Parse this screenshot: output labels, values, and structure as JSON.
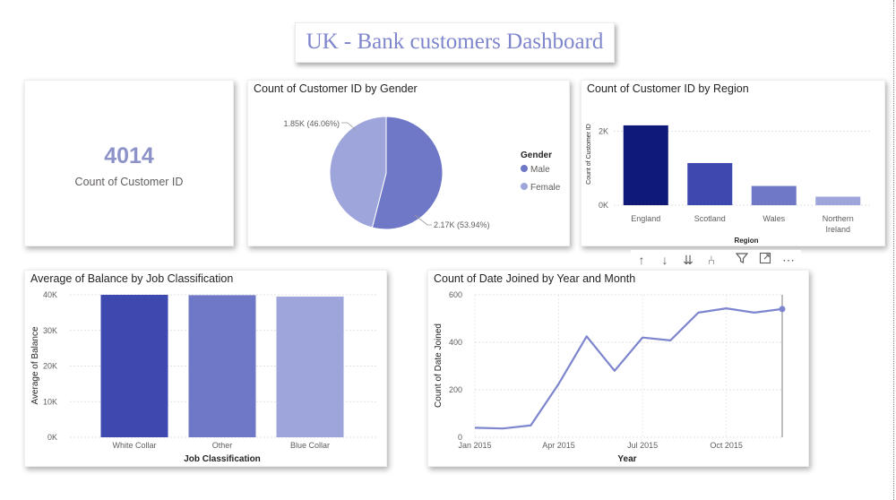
{
  "dashboard_title": "UK - Bank customers Dashboard",
  "colors": {
    "accent_dark": "#0f1a78",
    "accent_mid": "#3e49b0",
    "accent_medium": "#6f78c7",
    "accent_light": "#9da5da",
    "line": "#7c85cd"
  },
  "card": {
    "value": "4014",
    "label": "Count of Customer ID"
  },
  "gender_chart": {
    "title": "Count of Customer ID by Gender",
    "legend_title": "Gender",
    "label_female": "1.85K (46.06%)",
    "label_male": "2.17K (53.94%)"
  },
  "region_chart": {
    "title": "Count of Customer ID by Region"
  },
  "job_chart": {
    "title": "Average of Balance by Job Classification"
  },
  "date_chart": {
    "title": "Count of Date Joined by Year and Month"
  },
  "toolbar": [
    "arrow-up-icon",
    "arrow-down-icon",
    "double-arrow-down-icon",
    "expand-hierarchy-icon",
    "filter-icon",
    "focus-mode-icon",
    "more-options-icon"
  ],
  "chart_data": [
    {
      "type": "pie",
      "title": "Count of Customer ID by Gender",
      "legend_title": "Gender",
      "categories": [
        "Male",
        "Female"
      ],
      "values": [
        2170,
        1850
      ],
      "percents": [
        53.94,
        46.06
      ],
      "colors": [
        "#6f78c7",
        "#9da5da"
      ],
      "legend_position": "right"
    },
    {
      "type": "bar",
      "title": "Count of Customer ID by Region",
      "xlabel": "Region",
      "ylabel": "Count of Customer ID",
      "categories": [
        "England",
        "Scotland",
        "Wales",
        "Northern Ireland"
      ],
      "values": [
        2160,
        1140,
        520,
        230
      ],
      "ylim": [
        0,
        2400
      ],
      "yticks": [
        "0K",
        "2K"
      ],
      "colors": [
        "#0f1a78",
        "#3e49b0",
        "#6f78c7",
        "#9da5da"
      ],
      "grid": true
    },
    {
      "type": "bar",
      "title": "Average of Balance by Job Classification",
      "xlabel": "Job Classification",
      "ylabel": "Average of Balance",
      "categories": [
        "White Collar",
        "Other",
        "Blue Collar"
      ],
      "values": [
        40000,
        39900,
        39500
      ],
      "ylim": [
        0,
        40000
      ],
      "yticks": [
        "0K",
        "10K",
        "20K",
        "30K",
        "40K"
      ],
      "colors": [
        "#3e49b0",
        "#6f78c7",
        "#9da5da"
      ],
      "grid": true
    },
    {
      "type": "line",
      "title": "Count of Date Joined by Year and Month",
      "xlabel": "Year",
      "ylabel": "Count of Date Joined",
      "x": [
        "Jan 2015",
        "Feb 2015",
        "Mar 2015",
        "Apr 2015",
        "May 2015",
        "Jun 2015",
        "Jul 2015",
        "Aug 2015",
        "Sep 2015",
        "Oct 2015",
        "Nov 2015",
        "Dec 2015"
      ],
      "xtick_labels": [
        "Jan 2015",
        "Apr 2015",
        "Jul 2015",
        "Oct 2015"
      ],
      "values": [
        40,
        37,
        50,
        225,
        425,
        280,
        420,
        408,
        525,
        543,
        525,
        540
      ],
      "ylim": [
        0,
        600
      ],
      "yticks": [
        "0",
        "200",
        "400",
        "600"
      ],
      "grid": true,
      "color": "#7c85cd"
    }
  ]
}
